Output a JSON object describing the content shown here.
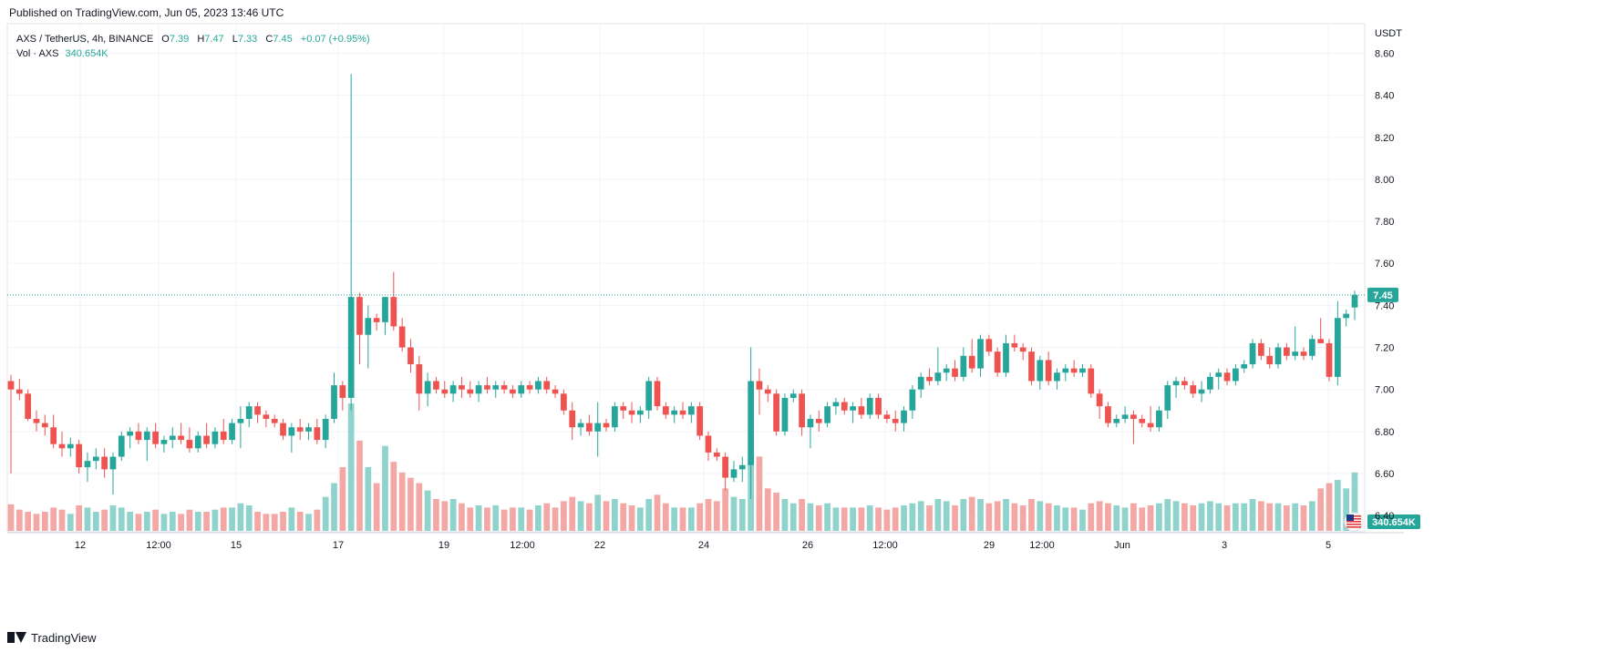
{
  "header": {
    "published": "Published on TradingView.com, Jun 05, 2023 13:46 UTC"
  },
  "legend": {
    "symbol": "AXS / TetherUS, 4h, BINANCE",
    "o_label": "O",
    "o": "7.39",
    "h_label": "H",
    "h": "7.47",
    "l_label": "L",
    "l": "7.33",
    "c_label": "C",
    "c": "7.45",
    "change": "+0.07 (+0.95%)",
    "vol_label": "Vol · AXS",
    "vol": "340.654K"
  },
  "footer": {
    "brand": "TradingView"
  },
  "colors": {
    "up": "#26a69a",
    "down": "#ef5350",
    "up_vol": "#8fd3cc",
    "down_vol": "#f4a8a6",
    "grid": "#f0f3fa",
    "text": "#131722"
  },
  "chart_data": {
    "type": "candlestick",
    "title": "AXS / TetherUS, 4h, BINANCE",
    "currency": "USDT",
    "ylim": [
      6.34,
      8.68
    ],
    "y_ticks": [
      "8.60",
      "8.40",
      "8.20",
      "8.00",
      "7.80",
      "7.60",
      "7.40",
      "7.20",
      "7.00",
      "6.80",
      "6.60",
      "6.40"
    ],
    "x_ticks": [
      "12",
      "12:00",
      "15",
      "17",
      "19",
      "12:00",
      "22",
      "24",
      "26",
      "12:00",
      "29",
      "12:00",
      "Jun",
      "3",
      "5"
    ],
    "last_price": "7.45",
    "last_volume": "340.654K",
    "candles": [
      [
        7.04,
        7.07,
        6.6,
        7.0,
        25
      ],
      [
        7.0,
        7.05,
        6.95,
        6.98,
        20
      ],
      [
        6.98,
        7.0,
        6.85,
        6.86,
        18
      ],
      [
        6.86,
        6.9,
        6.8,
        6.84,
        16
      ],
      [
        6.84,
        6.88,
        6.78,
        6.82,
        18
      ],
      [
        6.82,
        6.88,
        6.72,
        6.74,
        22
      ],
      [
        6.74,
        6.8,
        6.68,
        6.72,
        20
      ],
      [
        6.72,
        6.77,
        6.68,
        6.74,
        16
      ],
      [
        6.74,
        6.76,
        6.6,
        6.63,
        24
      ],
      [
        6.63,
        6.7,
        6.56,
        6.66,
        22
      ],
      [
        6.66,
        6.72,
        6.62,
        6.68,
        18
      ],
      [
        6.68,
        6.72,
        6.58,
        6.62,
        20
      ],
      [
        6.62,
        6.7,
        6.5,
        6.68,
        24
      ],
      [
        6.68,
        6.8,
        6.66,
        6.78,
        22
      ],
      [
        6.78,
        6.82,
        6.72,
        6.8,
        18
      ],
      [
        6.8,
        6.84,
        6.74,
        6.76,
        16
      ],
      [
        6.76,
        6.82,
        6.66,
        6.8,
        18
      ],
      [
        6.8,
        6.84,
        6.72,
        6.74,
        20
      ],
      [
        6.74,
        6.78,
        6.7,
        6.76,
        16
      ],
      [
        6.76,
        6.82,
        6.72,
        6.78,
        18
      ],
      [
        6.78,
        6.84,
        6.74,
        6.76,
        16
      ],
      [
        6.76,
        6.82,
        6.7,
        6.72,
        20
      ],
      [
        6.72,
        6.8,
        6.7,
        6.78,
        18
      ],
      [
        6.78,
        6.84,
        6.72,
        6.74,
        18
      ],
      [
        6.74,
        6.82,
        6.72,
        6.8,
        20
      ],
      [
        6.8,
        6.86,
        6.74,
        6.76,
        22
      ],
      [
        6.76,
        6.86,
        6.74,
        6.84,
        22
      ],
      [
        6.84,
        6.92,
        6.72,
        6.86,
        26
      ],
      [
        6.86,
        6.94,
        6.82,
        6.92,
        24
      ],
      [
        6.92,
        6.94,
        6.84,
        6.88,
        18
      ],
      [
        6.88,
        6.9,
        6.82,
        6.86,
        16
      ],
      [
        6.86,
        6.88,
        6.82,
        6.84,
        16
      ],
      [
        6.84,
        6.86,
        6.76,
        6.78,
        18
      ],
      [
        6.78,
        6.84,
        6.7,
        6.82,
        22
      ],
      [
        6.82,
        6.86,
        6.76,
        6.8,
        18
      ],
      [
        6.8,
        6.84,
        6.76,
        6.82,
        16
      ],
      [
        6.82,
        6.86,
        6.74,
        6.76,
        20
      ],
      [
        6.76,
        6.88,
        6.72,
        6.86,
        32
      ],
      [
        6.86,
        7.08,
        6.84,
        7.02,
        45
      ],
      [
        7.02,
        7.04,
        6.9,
        6.96,
        60
      ],
      [
        6.96,
        8.5,
        6.9,
        7.44,
        120
      ],
      [
        7.44,
        7.46,
        7.12,
        7.26,
        85
      ],
      [
        7.26,
        7.4,
        7.1,
        7.34,
        60
      ],
      [
        7.34,
        7.36,
        7.28,
        7.32,
        45
      ],
      [
        7.32,
        7.44,
        7.26,
        7.44,
        80
      ],
      [
        7.44,
        7.56,
        7.28,
        7.3,
        65
      ],
      [
        7.3,
        7.34,
        7.18,
        7.2,
        55
      ],
      [
        7.2,
        7.24,
        7.08,
        7.12,
        50
      ],
      [
        7.12,
        7.16,
        6.9,
        6.98,
        45
      ],
      [
        6.98,
        7.08,
        6.92,
        7.04,
        38
      ],
      [
        7.04,
        7.06,
        6.98,
        7.0,
        30
      ],
      [
        7.0,
        7.04,
        6.96,
        6.98,
        28
      ],
      [
        6.98,
        7.04,
        6.94,
        7.02,
        30
      ],
      [
        7.02,
        7.06,
        6.96,
        7.0,
        26
      ],
      [
        7.0,
        7.04,
        6.96,
        6.98,
        22
      ],
      [
        6.98,
        7.04,
        6.94,
        7.02,
        24
      ],
      [
        7.02,
        7.06,
        6.98,
        7.0,
        22
      ],
      [
        7.0,
        7.04,
        6.96,
        7.02,
        24
      ],
      [
        7.02,
        7.04,
        6.98,
        7.0,
        20
      ],
      [
        7.0,
        7.02,
        6.96,
        6.98,
        22
      ],
      [
        6.98,
        7.04,
        6.96,
        7.02,
        22
      ],
      [
        7.02,
        7.04,
        6.98,
        7.0,
        20
      ],
      [
        7.0,
        7.06,
        6.98,
        7.04,
        24
      ],
      [
        7.04,
        7.06,
        6.98,
        7.0,
        26
      ],
      [
        7.0,
        7.02,
        6.96,
        6.98,
        22
      ],
      [
        6.98,
        7.0,
        6.88,
        6.9,
        28
      ],
      [
        6.9,
        6.94,
        6.76,
        6.82,
        32
      ],
      [
        6.82,
        6.86,
        6.78,
        6.84,
        28
      ],
      [
        6.84,
        6.88,
        6.78,
        6.8,
        26
      ],
      [
        6.8,
        6.94,
        6.68,
        6.84,
        34
      ],
      [
        6.84,
        6.86,
        6.8,
        6.82,
        28
      ],
      [
        6.82,
        6.94,
        6.8,
        6.92,
        30
      ],
      [
        6.92,
        6.94,
        6.86,
        6.9,
        26
      ],
      [
        6.9,
        6.94,
        6.84,
        6.88,
        24
      ],
      [
        6.88,
        6.92,
        6.84,
        6.9,
        22
      ],
      [
        6.9,
        7.06,
        6.86,
        7.04,
        30
      ],
      [
        7.04,
        7.06,
        6.9,
        6.92,
        34
      ],
      [
        6.92,
        6.94,
        6.86,
        6.88,
        26
      ],
      [
        6.88,
        6.92,
        6.84,
        6.9,
        22
      ],
      [
        6.9,
        6.94,
        6.86,
        6.88,
        22
      ],
      [
        6.88,
        6.94,
        6.84,
        6.92,
        22
      ],
      [
        6.92,
        6.94,
        6.76,
        6.78,
        26
      ],
      [
        6.78,
        6.8,
        6.66,
        6.7,
        30
      ],
      [
        6.7,
        6.72,
        6.66,
        6.68,
        28
      ],
      [
        6.68,
        6.7,
        6.52,
        6.58,
        40
      ],
      [
        6.58,
        6.66,
        6.56,
        6.62,
        32
      ],
      [
        6.62,
        6.68,
        6.56,
        6.64,
        30
      ],
      [
        6.64,
        7.2,
        6.48,
        7.04,
        65
      ],
      [
        7.04,
        7.1,
        6.88,
        7.0,
        70
      ],
      [
        7.0,
        7.02,
        6.94,
        6.98,
        40
      ],
      [
        6.98,
        7.0,
        6.78,
        6.8,
        36
      ],
      [
        6.8,
        6.98,
        6.78,
        6.96,
        30
      ],
      [
        6.96,
        7.0,
        6.94,
        6.98,
        26
      ],
      [
        6.98,
        7.0,
        6.78,
        6.82,
        30
      ],
      [
        6.82,
        6.88,
        6.72,
        6.86,
        26
      ],
      [
        6.86,
        6.9,
        6.8,
        6.84,
        24
      ],
      [
        6.84,
        6.94,
        6.82,
        6.92,
        26
      ],
      [
        6.92,
        6.96,
        6.88,
        6.94,
        22
      ],
      [
        6.94,
        6.96,
        6.88,
        6.9,
        22
      ],
      [
        6.9,
        6.94,
        6.84,
        6.92,
        22
      ],
      [
        6.92,
        6.96,
        6.86,
        6.88,
        22
      ],
      [
        6.88,
        6.98,
        6.86,
        6.96,
        24
      ],
      [
        6.96,
        6.98,
        6.86,
        6.88,
        22
      ],
      [
        6.88,
        6.9,
        6.84,
        6.86,
        20
      ],
      [
        6.86,
        6.9,
        6.8,
        6.84,
        22
      ],
      [
        6.84,
        6.92,
        6.8,
        6.9,
        24
      ],
      [
        6.9,
        7.02,
        6.86,
        7.0,
        26
      ],
      [
        7.0,
        7.08,
        6.96,
        7.06,
        28
      ],
      [
        7.06,
        7.1,
        7.02,
        7.04,
        24
      ],
      [
        7.04,
        7.2,
        7.02,
        7.08,
        30
      ],
      [
        7.08,
        7.12,
        7.04,
        7.1,
        28
      ],
      [
        7.1,
        7.14,
        7.04,
        7.06,
        24
      ],
      [
        7.06,
        7.2,
        7.04,
        7.16,
        30
      ],
      [
        7.16,
        7.24,
        7.08,
        7.1,
        32
      ],
      [
        7.1,
        7.26,
        7.06,
        7.24,
        30
      ],
      [
        7.24,
        7.26,
        7.16,
        7.18,
        26
      ],
      [
        7.18,
        7.2,
        7.06,
        7.08,
        28
      ],
      [
        7.08,
        7.26,
        7.06,
        7.22,
        30
      ],
      [
        7.22,
        7.26,
        7.18,
        7.2,
        26
      ],
      [
        7.2,
        7.22,
        7.14,
        7.18,
        24
      ],
      [
        7.18,
        7.2,
        7.02,
        7.04,
        30
      ],
      [
        7.04,
        7.16,
        7.0,
        7.14,
        28
      ],
      [
        7.14,
        7.18,
        7.02,
        7.04,
        26
      ],
      [
        7.04,
        7.1,
        7.0,
        7.08,
        24
      ],
      [
        7.08,
        7.12,
        7.04,
        7.1,
        22
      ],
      [
        7.1,
        7.14,
        7.06,
        7.08,
        22
      ],
      [
        7.08,
        7.12,
        7.06,
        7.1,
        20
      ],
      [
        7.1,
        7.12,
        6.96,
        6.98,
        26
      ],
      [
        6.98,
        7.0,
        6.86,
        6.92,
        28
      ],
      [
        6.92,
        6.94,
        6.82,
        6.84,
        26
      ],
      [
        6.84,
        6.88,
        6.82,
        6.86,
        24
      ],
      [
        6.86,
        6.92,
        6.84,
        6.88,
        22
      ],
      [
        6.88,
        6.9,
        6.74,
        6.86,
        26
      ],
      [
        6.86,
        6.88,
        6.82,
        6.84,
        22
      ],
      [
        6.84,
        6.92,
        6.8,
        6.82,
        24
      ],
      [
        6.82,
        6.92,
        6.8,
        6.9,
        26
      ],
      [
        6.9,
        7.04,
        6.86,
        7.02,
        30
      ],
      [
        7.02,
        7.06,
        6.96,
        7.04,
        28
      ],
      [
        7.04,
        7.06,
        7.0,
        7.02,
        26
      ],
      [
        7.02,
        7.04,
        6.96,
        6.98,
        24
      ],
      [
        6.98,
        7.04,
        6.94,
        7.0,
        26
      ],
      [
        7.0,
        7.08,
        6.98,
        7.06,
        28
      ],
      [
        7.06,
        7.1,
        7.0,
        7.08,
        26
      ],
      [
        7.08,
        7.1,
        7.02,
        7.04,
        24
      ],
      [
        7.04,
        7.12,
        7.02,
        7.1,
        26
      ],
      [
        7.1,
        7.14,
        7.08,
        7.12,
        26
      ],
      [
        7.12,
        7.24,
        7.1,
        7.22,
        30
      ],
      [
        7.22,
        7.24,
        7.14,
        7.16,
        28
      ],
      [
        7.16,
        7.2,
        7.1,
        7.12,
        26
      ],
      [
        7.12,
        7.22,
        7.1,
        7.2,
        26
      ],
      [
        7.2,
        7.22,
        7.14,
        7.16,
        24
      ],
      [
        7.16,
        7.3,
        7.14,
        7.18,
        26
      ],
      [
        7.18,
        7.2,
        7.14,
        7.16,
        24
      ],
      [
        7.16,
        7.26,
        7.14,
        7.24,
        28
      ],
      [
        7.24,
        7.34,
        7.22,
        7.22,
        40
      ],
      [
        7.22,
        7.24,
        7.04,
        7.06,
        45
      ],
      [
        7.06,
        7.42,
        7.02,
        7.34,
        48
      ],
      [
        7.34,
        7.38,
        7.3,
        7.36,
        40
      ],
      [
        7.39,
        7.47,
        7.33,
        7.45,
        55
      ]
    ]
  }
}
